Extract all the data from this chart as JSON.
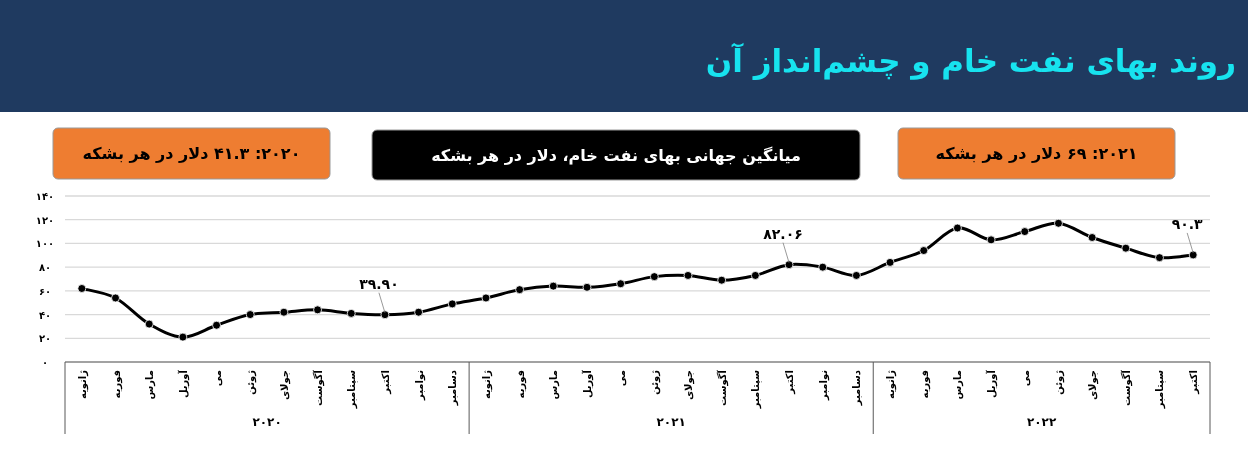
{
  "chart_data": {
    "type": "line",
    "title": "روند بهای نفت خام و چشم‌انداز آن",
    "subtitle": "میانگین جهانی بهای نفت خام،  دلار در هر بشکه",
    "annotations": [
      "۲۰۲۰:  ۴۱.۳ دلار در هر بشکه",
      "۲۰۲۱:   ۶۹ دلار در هر بشکه",
      "۲۰۲۰",
      "۲۰۲۱",
      "۲۰۲۲"
    ],
    "categories": [
      "ژانویه",
      "فوریه",
      "مارس",
      "آوریل",
      "می",
      "ژوئن",
      "جولای",
      "آگوست",
      "سپتامبر",
      "اکتبر",
      "نوامبر",
      "دسامبر",
      "ژانویه",
      "فوریه",
      "مارس",
      "آوریل",
      "می",
      "ژوئن",
      "جولای",
      "آگوست",
      "سپتامبر",
      "اکتبر",
      "نوامبر",
      "دسامبر",
      "ژانویه",
      "فوریه",
      "مارس",
      "آوریل",
      "می",
      "ژوئن",
      "جولای",
      "آگوست",
      "سپتامبر",
      "اکتبر"
    ],
    "values": [
      62,
      54,
      32,
      21,
      31,
      40,
      42,
      44,
      41,
      39.9,
      42,
      49,
      54,
      61,
      64,
      63,
      66,
      72,
      73,
      69,
      73,
      82.06,
      80,
      73,
      84,
      94,
      113,
      103,
      110,
      117,
      105,
      96,
      88,
      90.3
    ],
    "value_labels": [
      null,
      null,
      null,
      null,
      null,
      null,
      null,
      null,
      null,
      "۳۹.۹۰",
      null,
      null,
      null,
      null,
      null,
      null,
      null,
      null,
      null,
      null,
      null,
      "۸۲.۰۶",
      null,
      null,
      null,
      null,
      null,
      null,
      null,
      null,
      null,
      null,
      null,
      "۹۰.۳"
    ],
    "color": "#000000",
    "marker": "circle",
    "grid": "y",
    "ylim": [
      0,
      140
    ],
    "yticks": [
      {
        "value": 0,
        "label": "۰"
      },
      {
        "value": 20,
        "label": "۲۰"
      },
      {
        "value": 40,
        "label": "۴۰"
      },
      {
        "value": 60,
        "label": "۶۰"
      },
      {
        "value": 80,
        "label": "۸۰"
      },
      {
        "value": 100,
        "label": "۱۰۰"
      },
      {
        "value": 120,
        "label": "۱۲۰"
      },
      {
        "value": 140,
        "label": "۱۴۰"
      }
    ]
  }
}
